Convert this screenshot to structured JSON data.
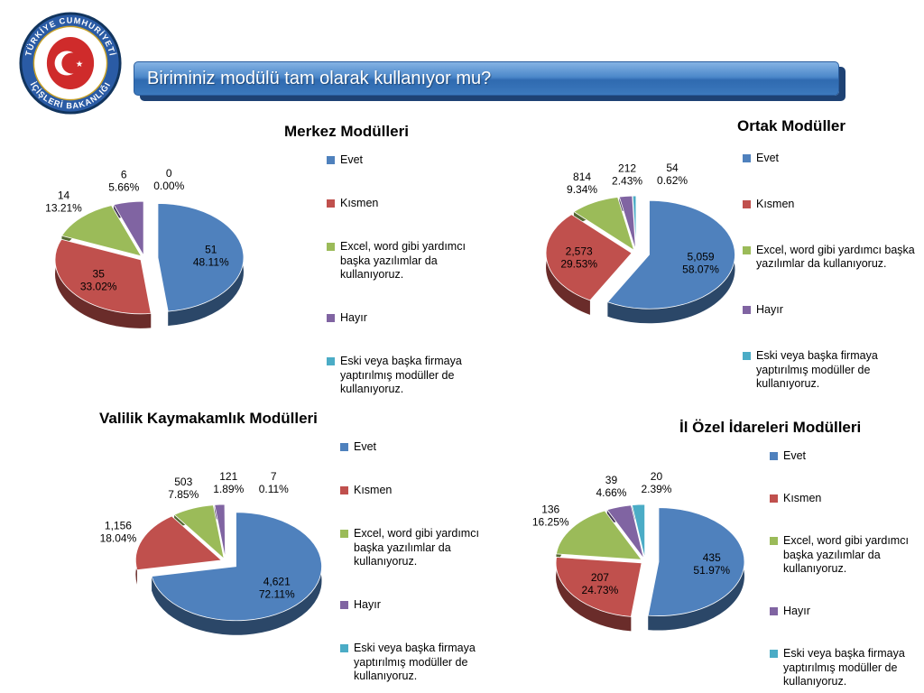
{
  "slide": {
    "title_banner": "Biriminiz modülü tam olarak kullanıyor mu?",
    "logo": {
      "top_text": "TÜRKİYE CUMHURİYETİ",
      "bottom_text": "İÇİŞLERİ BAKANLIĞI"
    },
    "banner_colors": {
      "fill": "#3c79bd",
      "shadow": "#1e4274",
      "text": "#ffffff"
    }
  },
  "series_colors": [
    "#4F81BD",
    "#C0504D",
    "#9BBB59",
    "#8064A2",
    "#4BACC6"
  ],
  "legend": {
    "labels": [
      "Evet",
      "Kısmen",
      "Excel, word gibi yardımcı başka yazılımlar da kullanıyoruz.",
      "Hayır",
      "Eski veya başka firmaya yaptırılmış modüller de kullanıyoruz."
    ]
  },
  "chart_data": [
    {
      "type": "pie",
      "title": "Merkez Modülleri",
      "legend_position": "right",
      "categories": [
        "Evet",
        "Kısmen",
        "Excel, word gibi yardımcı başka yazılımlar da kullanıyoruz.",
        "Hayır",
        "Eski veya başka firmaya yaptırılmış modüller de kullanıyoruz."
      ],
      "values": [
        51,
        35,
        14,
        6,
        0
      ],
      "value_labels": [
        "51",
        "35",
        "14",
        "6",
        "0"
      ],
      "pct_labels": [
        "48.11%",
        "33.02%",
        "13.21%",
        "5.66%",
        "0.00%"
      ]
    },
    {
      "type": "pie",
      "title": "Ortak Modüller",
      "legend_position": "right",
      "categories": [
        "Evet",
        "Kısmen",
        "Excel, word gibi yardımcı başka yazılımlar da kullanıyoruz.",
        "Hayır",
        "Eski veya başka firmaya yaptırılmış modüller de kullanıyoruz."
      ],
      "values": [
        5059,
        2573,
        814,
        212,
        54
      ],
      "value_labels": [
        "5,059",
        "2,573",
        "814",
        "212",
        "54"
      ],
      "pct_labels": [
        "58.07%",
        "29.53%",
        "9.34%",
        "2.43%",
        "0.62%"
      ]
    },
    {
      "type": "pie",
      "title": "Valilik Kaymakamlık Modülleri",
      "legend_position": "right",
      "categories": [
        "Evet",
        "Kısmen",
        "Excel, word gibi yardımcı başka yazılımlar da kullanıyoruz.",
        "Hayır",
        "Eski veya başka firmaya yaptırılmış modüller de kullanıyoruz."
      ],
      "values": [
        4621,
        1156,
        503,
        121,
        7
      ],
      "value_labels": [
        "4,621",
        "1,156",
        "503",
        "121",
        "7"
      ],
      "pct_labels": [
        "72.11%",
        "18.04%",
        "7.85%",
        "1.89%",
        "0.11%"
      ]
    },
    {
      "type": "pie",
      "title": "İl Özel İdareleri Modülleri",
      "legend_position": "right",
      "categories": [
        "Evet",
        "Kısmen",
        "Excel, word gibi yardımcı başka yazılımlar da kullanıyoruz.",
        "Hayır",
        "Eski veya başka firmaya yaptırılmış modüller de kullanıyoruz."
      ],
      "values": [
        435,
        207,
        136,
        39,
        20
      ],
      "value_labels": [
        "435",
        "207",
        "136",
        "39",
        "20"
      ],
      "pct_labels": [
        "51.97%",
        "24.73%",
        "16.25%",
        "4.66%",
        "2.39%"
      ]
    }
  ]
}
